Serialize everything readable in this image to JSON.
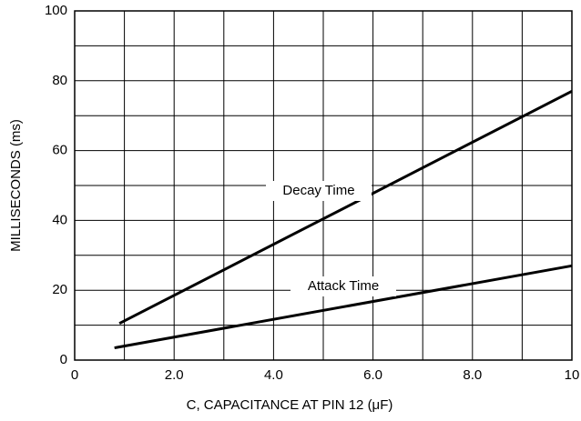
{
  "chart_data": {
    "type": "line",
    "xlabel": "C, CAPACITANCE AT PIN 12 (μF)",
    "ylabel": "MILLISECONDS (ms)",
    "xlim": [
      0,
      10
    ],
    "ylim": [
      0,
      100
    ],
    "xticks": [
      0,
      {
        "value": 2,
        "label": "2.0"
      },
      {
        "value": 4,
        "label": "4.0"
      },
      {
        "value": 6,
        "label": "6.0"
      },
      {
        "value": 8,
        "label": "8.0"
      },
      10
    ],
    "yticks": [
      0,
      20,
      40,
      60,
      80,
      100
    ],
    "xminor": [
      1,
      3,
      5,
      7,
      9
    ],
    "yminor": [
      10,
      30,
      50,
      70,
      90
    ],
    "grid": true,
    "series": [
      {
        "name": "Decay Time",
        "color": "#000000",
        "x": [
          0.9,
          10
        ],
        "values": [
          10.5,
          77
        ]
      },
      {
        "name": "Attack Time",
        "color": "#000000",
        "x": [
          0.8,
          10
        ],
        "values": [
          3.5,
          27
        ]
      }
    ]
  }
}
